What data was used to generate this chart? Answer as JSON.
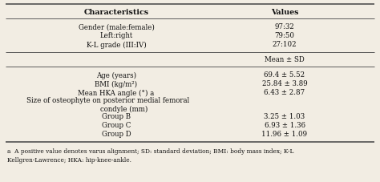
{
  "bg_color": "#f2ede3",
  "header": [
    "Characteristics",
    "Values"
  ],
  "section1": [
    [
      "Gender (male:female)",
      "97:32"
    ],
    [
      "Left:right",
      "79:50"
    ],
    [
      "K-L grade (III:IV)",
      "27:102"
    ]
  ],
  "subheader_val": "Mean ± SD",
  "section2_top": [
    [
      "Age (years)",
      "69.4 ± 5.52"
    ],
    [
      "BMI (kg/m²)",
      "25.84 ± 3.89"
    ],
    [
      "Mean HKA angle (°) a",
      "6.43 ± 2.87"
    ]
  ],
  "osteophyte_line1": "Size of osteophyte on posterior medial femoral",
  "osteophyte_line2": "condyle (mm)",
  "groups": [
    [
      "Group B",
      "3.25 ± 1.03"
    ],
    [
      "Group C",
      "6.93 ± 1.36"
    ],
    [
      "Group D",
      "11.96 ± 1.09"
    ]
  ],
  "footnote_line1": "a  A positive value denotes varus alignment; SD: standard deviation; BMI: body mass index; K-L",
  "footnote_line2": "Kellgren-Lawrence; HKA: hip-knee-ankle.",
  "fs_header": 6.8,
  "fs_body": 6.2,
  "fs_footnote": 5.3,
  "lw_thick": 1.1,
  "lw_thin": 0.6,
  "line_color": "#444444",
  "text_color": "#111111"
}
